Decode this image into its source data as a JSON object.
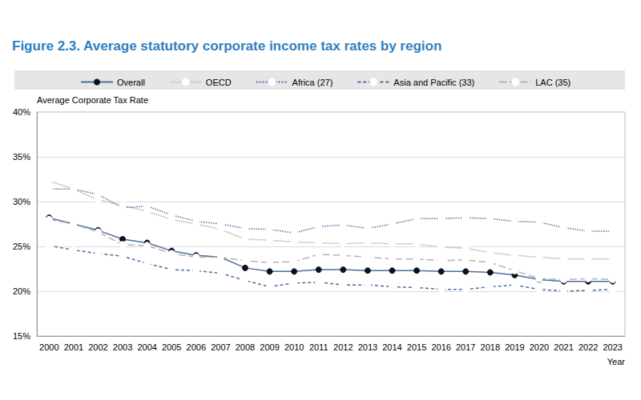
{
  "chart_data": {
    "type": "line",
    "title": "Figure 2.3. Average statutory corporate income tax rates by region",
    "y_label": "Average Corporate Tax Rate",
    "x_label": "Year",
    "categories": [
      "2000",
      "2001",
      "2002",
      "2003",
      "2004",
      "2005",
      "2006",
      "2007",
      "2008",
      "2009",
      "2010",
      "2011",
      "2012",
      "2013",
      "2014",
      "2015",
      "2016",
      "2017",
      "2018",
      "2019",
      "2020",
      "2021",
      "2022",
      "2023"
    ],
    "series": [
      {
        "name": "Overall",
        "color": "#4a6fa5",
        "marker": "circle",
        "line_style": "solid",
        "values": [
          28.2,
          27.5,
          26.8,
          25.8,
          25.4,
          24.5,
          24.0,
          23.8,
          22.6,
          22.2,
          22.2,
          22.4,
          22.4,
          22.3,
          22.3,
          22.3,
          22.2,
          22.2,
          22.1,
          21.8,
          21.3,
          21.1,
          21.1,
          21.1
        ]
      },
      {
        "name": "OECD",
        "color": "#d0d0d0",
        "marker": "open_circle",
        "line_style": "solid",
        "values": [
          32.3,
          31.4,
          30.2,
          29.6,
          28.9,
          28.0,
          27.5,
          26.9,
          25.8,
          25.7,
          25.5,
          25.4,
          25.3,
          25.4,
          25.3,
          25.3,
          24.9,
          24.8,
          24.3,
          24.0,
          23.8,
          23.6,
          23.6,
          23.6
        ]
      },
      {
        "name": "Africa (27)",
        "color": "#4f6f9f",
        "marker": "open_circle",
        "line_style": "dotted",
        "values": [
          31.4,
          31.4,
          30.8,
          29.3,
          29.5,
          28.5,
          27.8,
          27.5,
          27.0,
          26.9,
          26.5,
          27.2,
          27.4,
          27.0,
          27.5,
          28.1,
          28.1,
          28.2,
          28.1,
          27.8,
          27.7,
          27.1,
          26.7,
          26.7
        ]
      },
      {
        "name": "Asia and Pacific (33)",
        "color": "#4a6fa5",
        "marker": "open_circle",
        "line_style": "dashed",
        "values": [
          25.1,
          24.6,
          24.2,
          23.9,
          23.1,
          22.4,
          22.3,
          22.0,
          21.2,
          20.5,
          20.9,
          21.0,
          20.7,
          20.7,
          20.5,
          20.4,
          20.2,
          20.2,
          20.5,
          20.7,
          20.2,
          20.0,
          20.1,
          20.2
        ]
      },
      {
        "name": "LAC (35)",
        "color": "#b4b4b4",
        "marker": "open_circle",
        "line_style": "long_dashed",
        "values": [
          28.0,
          27.5,
          26.6,
          25.2,
          25.1,
          24.2,
          23.8,
          23.8,
          23.4,
          23.2,
          23.3,
          24.1,
          24.0,
          23.8,
          23.6,
          23.6,
          23.4,
          23.5,
          23.2,
          22.3,
          21.4,
          21.3,
          21.4,
          21.3
        ]
      }
    ],
    "ylim": [
      15,
      40
    ],
    "yticks": [
      {
        "value": 15,
        "label": "15%"
      },
      {
        "value": 20,
        "label": "20%"
      },
      {
        "value": 25,
        "label": "25%"
      },
      {
        "value": 30,
        "label": "30%"
      },
      {
        "value": 35,
        "label": "35%"
      },
      {
        "value": 40,
        "label": "40%"
      }
    ],
    "grid": true,
    "legend": "top"
  }
}
